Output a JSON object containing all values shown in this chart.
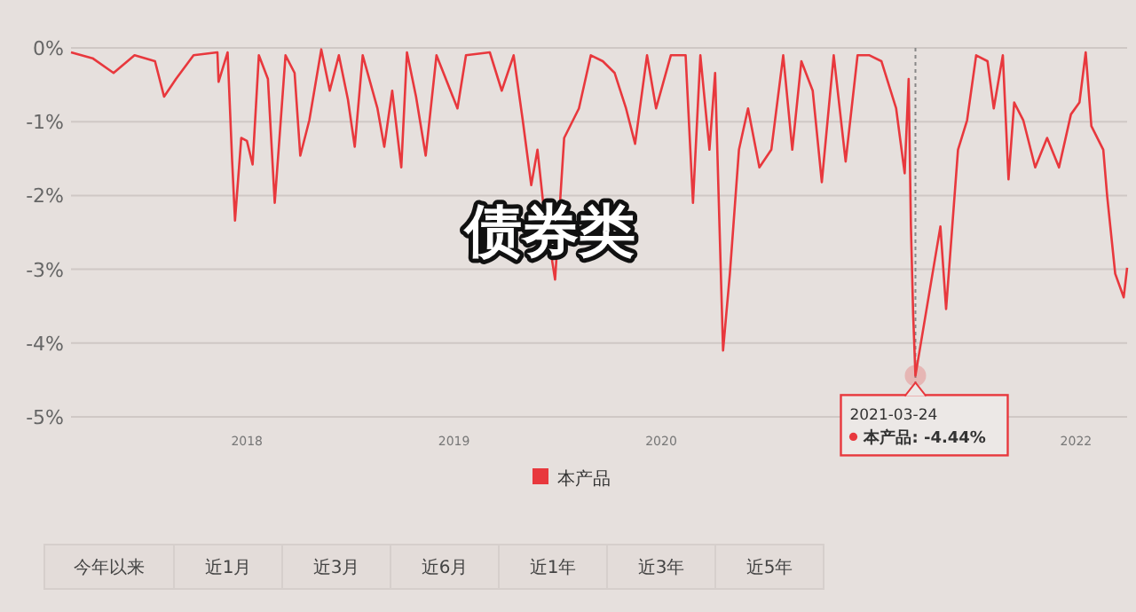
{
  "chart_data": {
    "type": "line",
    "title": "债券类",
    "x": [
      "2017-02-25",
      "2017-04-04",
      "2017-05-11",
      "2017-06-17",
      "2017-07-23",
      "2017-08-08",
      "2017-08-29",
      "2017-09-29",
      "2017-11-10",
      "2017-11-12",
      "2017-11-28",
      "2017-12-06",
      "2017-12-11",
      "2017-12-22",
      "2018-01-01",
      "2018-01-11",
      "2018-01-22",
      "2018-02-07",
      "2018-02-19",
      "2018-03-10",
      "2018-03-26",
      "2018-04-05",
      "2018-04-21",
      "2018-05-12",
      "2018-05-27",
      "2018-06-12",
      "2018-06-28",
      "2018-07-10",
      "2018-07-24",
      "2018-08-19",
      "2018-08-31",
      "2018-09-14",
      "2018-09-30",
      "2018-10-10",
      "2018-10-26",
      "2018-11-12",
      "2018-12-01",
      "2019-01-07",
      "2019-01-22",
      "2019-03-05",
      "2019-03-26",
      "2019-04-16",
      "2019-05-02",
      "2019-05-17",
      "2019-05-28",
      "2019-06-07",
      "2019-06-28",
      "2019-07-14",
      "2019-08-09",
      "2019-08-30",
      "2019-09-20",
      "2019-10-11",
      "2019-10-31",
      "2019-11-16",
      "2019-12-07",
      "2019-12-23",
      "2020-01-18",
      "2020-02-13",
      "2020-02-26",
      "2020-03-10",
      "2020-03-26",
      "2020-04-05",
      "2020-04-19",
      "2020-05-01",
      "2020-05-17",
      "2020-06-02",
      "2020-06-22",
      "2020-07-13",
      "2020-08-03",
      "2020-08-19",
      "2020-09-04",
      "2020-09-24",
      "2020-10-10",
      "2020-10-31",
      "2020-11-21",
      "2020-12-12",
      "2021-01-02",
      "2021-01-23",
      "2021-02-18",
      "2021-03-05",
      "2021-03-12",
      "2021-03-16",
      "2021-03-20",
      "2021-03-24",
      "2021-05-07",
      "2021-05-17",
      "2021-06-07",
      "2021-06-23",
      "2021-07-09",
      "2021-07-29",
      "2021-08-09",
      "2021-08-25",
      "2021-09-04",
      "2021-09-14",
      "2021-09-30",
      "2021-10-21",
      "2021-11-11",
      "2021-12-02",
      "2021-12-23",
      "2022-01-07",
      "2022-01-18",
      "2022-01-28",
      "2022-02-18",
      "2022-02-25",
      "2022-03-11",
      "2022-03-26",
      "2022-04-01"
    ],
    "series": [
      {
        "name": "本产品",
        "color": "#e8383d",
        "values": [
          -0.06,
          -0.14,
          -0.34,
          -0.1,
          -0.18,
          -0.66,
          -0.42,
          -0.1,
          -0.06,
          -0.46,
          -0.06,
          -1.54,
          -2.34,
          -1.22,
          -1.26,
          -1.58,
          -0.1,
          -0.42,
          -2.1,
          -0.1,
          -0.34,
          -1.46,
          -0.98,
          -0.02,
          -0.58,
          -0.1,
          -0.7,
          -1.34,
          -0.1,
          -0.82,
          -1.34,
          -0.58,
          -1.62,
          -0.06,
          -0.66,
          -1.46,
          -0.1,
          -0.82,
          -0.1,
          -0.06,
          -0.58,
          -0.1,
          -0.98,
          -1.86,
          -1.38,
          -2.1,
          -3.14,
          -1.22,
          -0.82,
          -0.1,
          -0.18,
          -0.34,
          -0.82,
          -1.3,
          -0.1,
          -0.82,
          -0.1,
          -0.1,
          -2.1,
          -0.1,
          -1.38,
          -0.34,
          -4.1,
          -3.06,
          -1.38,
          -0.82,
          -1.62,
          -1.38,
          -0.1,
          -1.38,
          -0.18,
          -0.58,
          -1.82,
          -0.1,
          -1.54,
          -0.1,
          -0.1,
          -0.18,
          -0.82,
          -1.7,
          -0.42,
          -2.42,
          -3.62,
          -4.44,
          -2.42,
          -3.54,
          -1.38,
          -0.98,
          -0.1,
          -0.18,
          -0.82,
          -0.1,
          -1.78,
          -0.74,
          -0.98,
          -1.62,
          -1.22,
          -1.62,
          -0.9,
          -0.74,
          -0.06,
          -1.06,
          -1.38,
          -2.02,
          -3.06,
          -3.38,
          -2.98
        ]
      }
    ],
    "xlim": [
      "2017-02-25",
      "2022-04-01"
    ],
    "ylim": [
      -5,
      0
    ],
    "xticks": [
      "2018",
      "2019",
      "2020",
      "2022"
    ],
    "yticks": [
      {
        "value": 0,
        "label": "0%"
      },
      {
        "value": -1,
        "label": "-1%"
      },
      {
        "value": -2,
        "label": "-2%"
      },
      {
        "value": -3,
        "label": "-3%"
      },
      {
        "value": -4,
        "label": "-4%"
      },
      {
        "value": -5,
        "label": "-5%"
      }
    ],
    "grid": "y",
    "legend": "bottom",
    "ref_lines": [
      {
        "axis": "x",
        "value": "2021-03-24",
        "line_style": "dotted",
        "color": "#888888"
      }
    ],
    "annotations": [
      "今年以来",
      "近1月",
      "近3月",
      "近6月",
      "近1年",
      "近3年",
      "近5年",
      {
        "text": "2021-03-24",
        "x": "2021-03-24",
        "y": -4.44
      },
      "本产品: -4.44%"
    ]
  }
}
